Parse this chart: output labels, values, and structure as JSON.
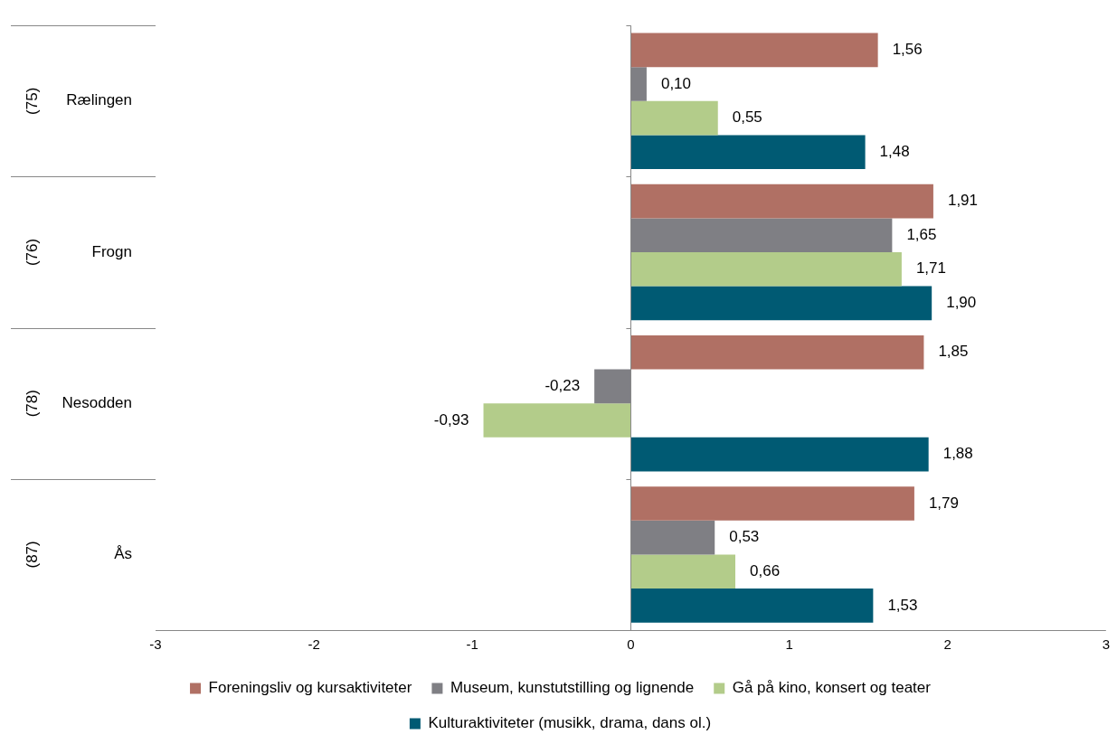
{
  "chart_data": {
    "type": "bar",
    "orientation": "horizontal",
    "categories": [
      "Rælingen",
      "Frogn",
      "Nesodden",
      "Ås"
    ],
    "annotations": [
      "(75)",
      "(76)",
      "(78)",
      "(87)"
    ],
    "series": [
      {
        "name": "Foreningsliv og kursaktiviteter",
        "color": "#b07064",
        "values": [
          1.56,
          1.91,
          1.85,
          1.79
        ],
        "value_labels": [
          "1,56",
          "1,91",
          "1,85",
          "1,79"
        ]
      },
      {
        "name": "Museum, kunstutstilling og lignende",
        "color": "#7f7f84",
        "values": [
          0.1,
          1.65,
          -0.23,
          0.53
        ],
        "value_labels": [
          "0,10",
          "1,65",
          "-0,23",
          "0,53"
        ]
      },
      {
        "name": "Gå på kino, konsert og teater",
        "color": "#b3cc8a",
        "values": [
          0.55,
          1.71,
          -0.93,
          0.66
        ],
        "value_labels": [
          "0,55",
          "1,71",
          "-0,93",
          "0,66"
        ]
      },
      {
        "name": "Kulturaktiviteter (musikk, drama, dans ol.)",
        "color": "#005a73",
        "values": [
          1.48,
          1.9,
          1.88,
          1.53
        ],
        "value_labels": [
          "1,48",
          "1,90",
          "1,88",
          "1,53"
        ]
      }
    ],
    "ref_lines": [
      {
        "axis": "x",
        "value": 0,
        "color": "#888888"
      }
    ],
    "xlim": [
      -3,
      3
    ],
    "xticks": [
      -3,
      -2,
      -1,
      0,
      1,
      2,
      3
    ],
    "grid": false,
    "legend": "bottom"
  }
}
